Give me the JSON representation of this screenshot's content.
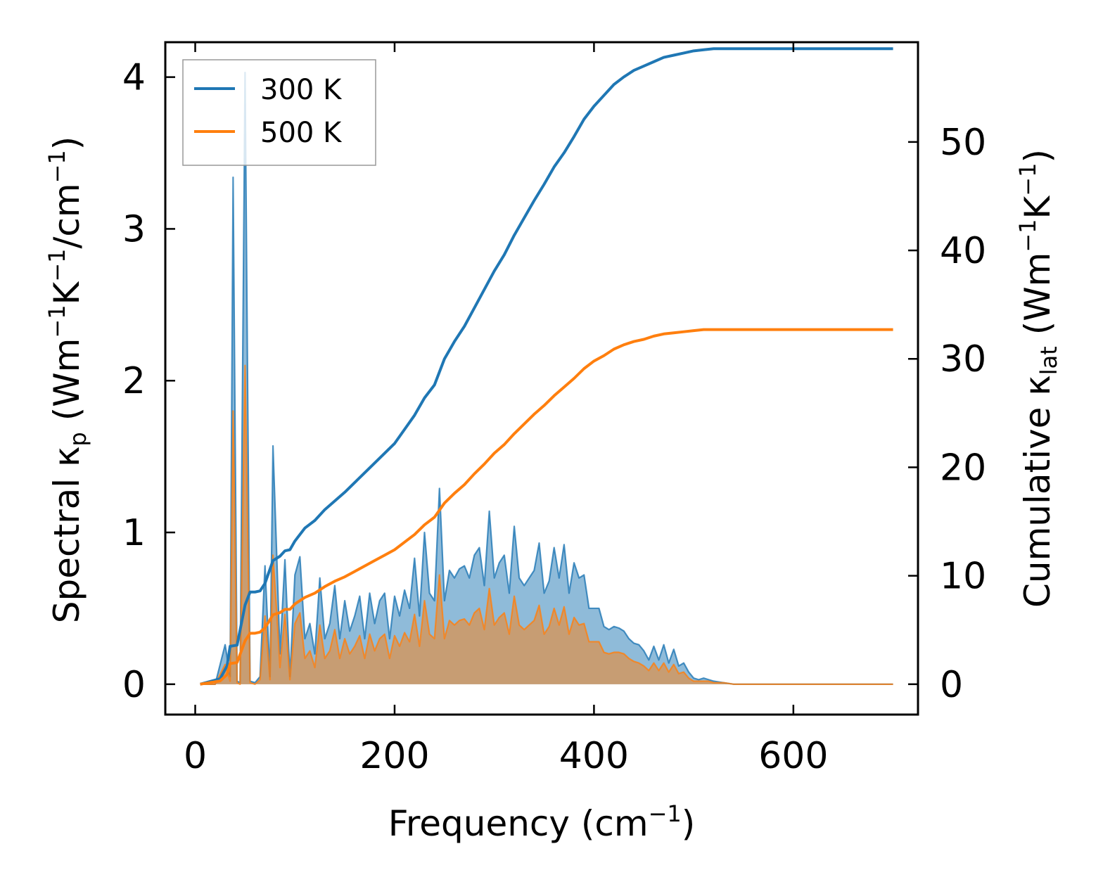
{
  "chart_data": {
    "type": "line",
    "title": "",
    "xlabel": "Frequency (cm",
    "xlabel_sup": "−1",
    "xlabel_end": ")",
    "ylabel_left": {
      "a": "Spectral κ",
      "sub": "p",
      "b": " (Wm",
      "sup1": "−1",
      "c": "K",
      "sup2": "−1",
      "d": "/cm",
      "sup3": "−1",
      "e": ")"
    },
    "ylabel_right": {
      "a": "Cumulative κ",
      "sub": "lat",
      "b": " (Wm",
      "sup1": "−1",
      "c": "K",
      "sup2": "−1",
      "d": ")"
    },
    "xlim": [
      -30,
      725
    ],
    "ylim_left": [
      -0.2,
      4.23
    ],
    "ylim_right": [
      -2.8,
      59.2
    ],
    "xticks": [
      0,
      200,
      400,
      600
    ],
    "xtick_labels": [
      "0",
      "200",
      "400",
      "600"
    ],
    "yticks_left": [
      0,
      1,
      2,
      3,
      4
    ],
    "ytick_labels_left": [
      "0",
      "1",
      "2",
      "3",
      "4"
    ],
    "yticks_right": [
      0,
      10,
      20,
      30,
      40,
      50
    ],
    "ytick_labels_right": [
      "0",
      "10",
      "20",
      "30",
      "40",
      "50"
    ],
    "legend_position": "top-left",
    "legend": [
      {
        "name": "300 K",
        "color": "#1f77b4"
      },
      {
        "name": "500 K",
        "color": "#ff7f0e"
      }
    ],
    "spectral_axis": "left",
    "cumulative_axis": "right",
    "spectral": {
      "x": [
        5,
        20,
        30,
        35,
        38,
        42,
        45,
        50,
        55,
        60,
        65,
        70,
        75,
        78,
        82,
        85,
        90,
        95,
        100,
        105,
        110,
        115,
        120,
        125,
        130,
        135,
        140,
        145,
        150,
        155,
        160,
        165,
        170,
        175,
        180,
        185,
        190,
        195,
        200,
        205,
        210,
        215,
        220,
        225,
        230,
        235,
        240,
        245,
        250,
        255,
        260,
        265,
        270,
        275,
        280,
        285,
        290,
        295,
        300,
        305,
        310,
        315,
        320,
        325,
        330,
        335,
        340,
        345,
        350,
        355,
        360,
        365,
        370,
        375,
        380,
        385,
        390,
        395,
        400,
        405,
        410,
        415,
        420,
        425,
        430,
        435,
        440,
        445,
        450,
        455,
        460,
        465,
        470,
        475,
        480,
        485,
        490,
        495,
        500,
        505,
        510,
        515,
        520,
        530,
        540,
        560,
        600,
        650,
        700
      ],
      "series": [
        {
          "name": "300 K",
          "color": "#1f77b4",
          "values": [
            0,
            0,
            0.26,
            0.05,
            3.34,
            0.02,
            0.01,
            4.03,
            0.02,
            0.01,
            0.05,
            0.78,
            0.05,
            1.57,
            0.8,
            0.2,
            0.82,
            0.05,
            0.72,
            0.84,
            0.3,
            0.4,
            0.2,
            0.7,
            0.3,
            0.4,
            0.65,
            0.3,
            0.55,
            0.35,
            0.45,
            0.58,
            0.3,
            0.6,
            0.4,
            0.55,
            0.6,
            0.3,
            0.58,
            0.45,
            0.62,
            0.5,
            0.83,
            0.45,
            1.0,
            0.6,
            0.55,
            1.29,
            0.55,
            0.75,
            0.7,
            0.76,
            0.78,
            0.7,
            0.85,
            0.9,
            0.65,
            1.14,
            0.7,
            0.8,
            0.85,
            0.6,
            1.04,
            0.7,
            0.65,
            0.7,
            0.75,
            0.93,
            0.6,
            0.68,
            0.9,
            0.7,
            0.92,
            0.6,
            0.8,
            0.7,
            0.72,
            0.5,
            0.5,
            0.5,
            0.38,
            0.36,
            0.38,
            0.37,
            0.35,
            0.3,
            0.27,
            0.26,
            0.22,
            0.16,
            0.25,
            0.16,
            0.26,
            0.14,
            0.23,
            0.12,
            0.14,
            0.08,
            0.04,
            0.03,
            0.04,
            0.03,
            0.02,
            0.01,
            0,
            0,
            0,
            0,
            0
          ]
        },
        {
          "name": "500 K",
          "color": "#ff7f0e",
          "values": [
            0,
            0,
            0.13,
            0.02,
            1.8,
            0.01,
            0,
            2.1,
            0.01,
            0,
            0.03,
            0.45,
            0.03,
            0.85,
            0.45,
            0.11,
            0.46,
            0.03,
            0.4,
            0.47,
            0.17,
            0.22,
            0.11,
            0.39,
            0.17,
            0.22,
            0.36,
            0.17,
            0.3,
            0.2,
            0.25,
            0.32,
            0.17,
            0.33,
            0.22,
            0.3,
            0.33,
            0.17,
            0.32,
            0.25,
            0.34,
            0.28,
            0.46,
            0.25,
            0.55,
            0.33,
            0.3,
            0.72,
            0.3,
            0.42,
            0.39,
            0.42,
            0.43,
            0.39,
            0.47,
            0.5,
            0.36,
            0.63,
            0.39,
            0.44,
            0.47,
            0.33,
            0.58,
            0.39,
            0.36,
            0.39,
            0.42,
            0.52,
            0.33,
            0.38,
            0.5,
            0.39,
            0.51,
            0.33,
            0.44,
            0.39,
            0.4,
            0.28,
            0.28,
            0.28,
            0.21,
            0.2,
            0.21,
            0.21,
            0.2,
            0.17,
            0.15,
            0.14,
            0.12,
            0.09,
            0.14,
            0.09,
            0.14,
            0.08,
            0.13,
            0.07,
            0.08,
            0.04,
            0.02,
            0.02,
            0.02,
            0.02,
            0.01,
            0.01,
            0,
            0,
            0,
            0,
            0
          ]
        }
      ]
    },
    "cumulative": {
      "x": [
        5,
        25,
        32,
        35,
        42,
        50,
        55,
        60,
        65,
        70,
        78,
        85,
        90,
        95,
        100,
        110,
        120,
        130,
        140,
        150,
        160,
        170,
        180,
        190,
        200,
        210,
        220,
        230,
        240,
        250,
        260,
        270,
        280,
        290,
        300,
        310,
        320,
        330,
        340,
        350,
        360,
        370,
        380,
        390,
        400,
        410,
        420,
        430,
        440,
        450,
        460,
        470,
        480,
        490,
        500,
        510,
        520,
        530,
        560,
        600,
        650,
        700
      ],
      "series": [
        {
          "name": "300 K",
          "color": "#1f77b4",
          "values": [
            0,
            0.5,
            1.7,
            3.5,
            3.6,
            7.3,
            8.5,
            8.5,
            8.6,
            9.3,
            11.4,
            11.8,
            12.3,
            12.4,
            13.2,
            14.4,
            15.1,
            16.1,
            16.9,
            17.7,
            18.6,
            19.5,
            20.4,
            21.3,
            22.2,
            23.5,
            24.8,
            26.4,
            27.6,
            30.0,
            31.6,
            33.0,
            34.7,
            36.4,
            38.1,
            39.6,
            41.4,
            43.0,
            44.6,
            46.1,
            47.7,
            49.0,
            50.5,
            52.1,
            53.3,
            54.3,
            55.3,
            56.0,
            56.6,
            57.0,
            57.4,
            57.8,
            58.0,
            58.2,
            58.4,
            58.5,
            58.6,
            58.6,
            58.6,
            58.6,
            58.6,
            58.6
          ]
        },
        {
          "name": "500 K",
          "color": "#ff7f0e",
          "values": [
            0,
            0.3,
            0.9,
            1.9,
            2.0,
            4.0,
            4.7,
            4.7,
            4.8,
            5.2,
            6.4,
            6.6,
            6.9,
            6.9,
            7.4,
            8.0,
            8.4,
            9.0,
            9.5,
            9.9,
            10.4,
            10.9,
            11.4,
            11.9,
            12.4,
            13.1,
            13.8,
            14.7,
            15.4,
            16.7,
            17.6,
            18.4,
            19.4,
            20.3,
            21.3,
            22.1,
            23.1,
            24.0,
            24.9,
            25.7,
            26.6,
            27.4,
            28.2,
            29.1,
            29.8,
            30.3,
            30.9,
            31.3,
            31.6,
            31.8,
            32.1,
            32.3,
            32.4,
            32.5,
            32.6,
            32.7,
            32.7,
            32.7,
            32.7,
            32.7,
            32.7,
            32.7
          ]
        }
      ]
    }
  }
}
